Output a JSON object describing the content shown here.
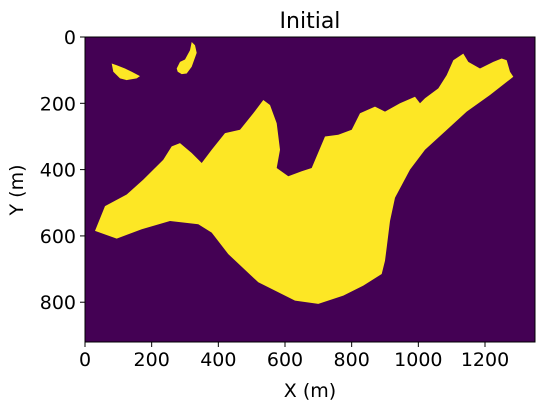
{
  "colors": {
    "background": "#440154",
    "foreground": "#fde725",
    "axis": "#000000"
  },
  "chart_data": {
    "type": "heatmap",
    "title": "Initial",
    "xlabel": "X (m)",
    "ylabel": "Y (m)",
    "xlim": [
      0,
      1350
    ],
    "ylim": [
      920,
      0
    ],
    "grid": false,
    "legend": "none",
    "x_ticks": [
      0,
      200,
      400,
      600,
      800,
      1000,
      1200
    ],
    "x_tick_labels": [
      "0",
      "200",
      "400",
      "600",
      "800",
      "1000",
      "1200"
    ],
    "y_ticks": [
      0,
      200,
      400,
      600,
      800
    ],
    "y_tick_labels": [
      "0",
      "200",
      "400",
      "600",
      "800"
    ],
    "values": [
      0,
      1
    ],
    "regions": [
      {
        "value": 1,
        "polygon": [
          [
            30,
            585
          ],
          [
            60,
            510
          ],
          [
            125,
            475
          ],
          [
            175,
            430
          ],
          [
            235,
            370
          ],
          [
            260,
            330
          ],
          [
            285,
            320
          ],
          [
            320,
            350
          ],
          [
            350,
            380
          ],
          [
            380,
            340
          ],
          [
            420,
            290
          ],
          [
            465,
            280
          ],
          [
            505,
            230
          ],
          [
            535,
            190
          ],
          [
            555,
            205
          ],
          [
            575,
            260
          ],
          [
            585,
            340
          ],
          [
            575,
            395
          ],
          [
            610,
            420
          ],
          [
            650,
            405
          ],
          [
            680,
            395
          ],
          [
            720,
            300
          ],
          [
            760,
            295
          ],
          [
            800,
            280
          ],
          [
            825,
            230
          ],
          [
            870,
            210
          ],
          [
            900,
            225
          ],
          [
            945,
            200
          ],
          [
            990,
            180
          ],
          [
            1005,
            200
          ],
          [
            1020,
            185
          ],
          [
            1060,
            155
          ],
          [
            1085,
            115
          ],
          [
            1105,
            70
          ],
          [
            1135,
            50
          ],
          [
            1150,
            75
          ],
          [
            1185,
            95
          ],
          [
            1225,
            75
          ],
          [
            1250,
            65
          ],
          [
            1265,
            70
          ],
          [
            1275,
            105
          ],
          [
            1285,
            120
          ],
          [
            1215,
            175
          ],
          [
            1145,
            225
          ],
          [
            1080,
            285
          ],
          [
            1020,
            340
          ],
          [
            975,
            400
          ],
          [
            930,
            485
          ],
          [
            915,
            555
          ],
          [
            905,
            635
          ],
          [
            900,
            675
          ],
          [
            890,
            715
          ],
          [
            835,
            750
          ],
          [
            775,
            780
          ],
          [
            700,
            805
          ],
          [
            630,
            795
          ],
          [
            520,
            740
          ],
          [
            430,
            655
          ],
          [
            380,
            590
          ],
          [
            340,
            565
          ],
          [
            255,
            555
          ],
          [
            170,
            580
          ],
          [
            95,
            608
          ]
        ]
      },
      {
        "value": 1,
        "polygon": [
          [
            80,
            80
          ],
          [
            95,
            85
          ],
          [
            120,
            95
          ],
          [
            140,
            105
          ],
          [
            165,
            118
          ],
          [
            155,
            125
          ],
          [
            125,
            130
          ],
          [
            105,
            125
          ],
          [
            85,
            105
          ]
        ]
      },
      {
        "value": 1,
        "polygon": [
          [
            275,
            95
          ],
          [
            285,
            75
          ],
          [
            300,
            68
          ],
          [
            315,
            40
          ],
          [
            320,
            15
          ],
          [
            330,
            25
          ],
          [
            335,
            48
          ],
          [
            320,
            90
          ],
          [
            305,
            110
          ],
          [
            290,
            112
          ],
          [
            278,
            105
          ]
        ]
      }
    ]
  }
}
